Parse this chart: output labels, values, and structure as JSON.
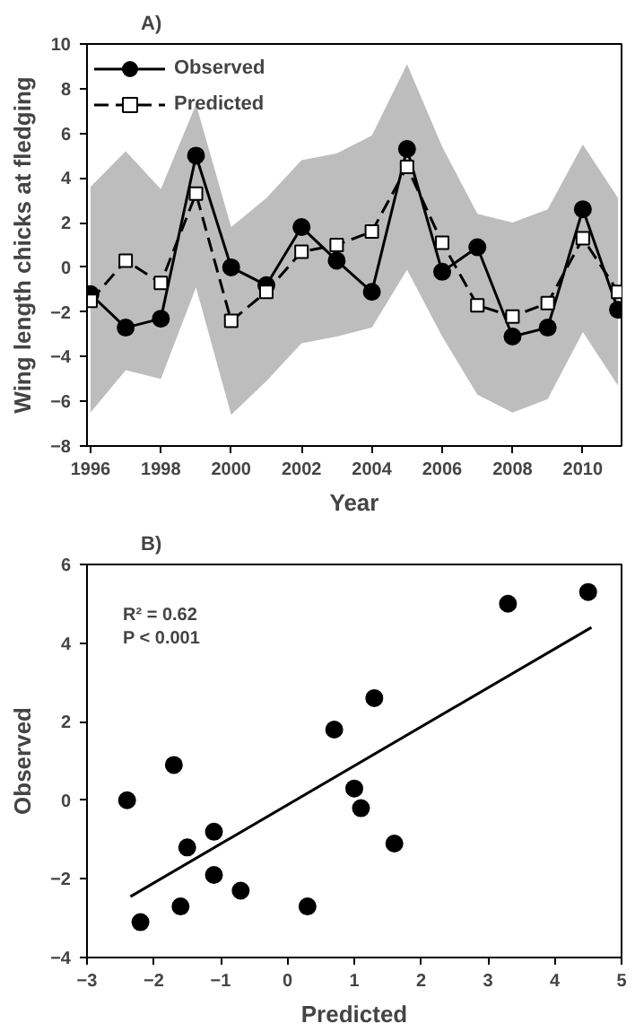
{
  "chart_data": [
    {
      "type": "line",
      "title": "A)",
      "xlabel": "Year",
      "ylabel": "Wing length chicks at fledging",
      "x": [
        1996,
        1997,
        1998,
        1999,
        2000,
        2001,
        2002,
        2003,
        2004,
        2005,
        2006,
        2007,
        2008,
        2009,
        2010,
        2011
      ],
      "series": [
        {
          "name": "Observed",
          "color": "#000000",
          "marker": "circle",
          "line_style": "solid",
          "values": [
            -1.2,
            -2.7,
            -2.3,
            5.0,
            0.0,
            -0.8,
            1.8,
            0.3,
            -1.1,
            5.3,
            -0.2,
            0.9,
            -3.1,
            -2.7,
            2.6,
            -1.9
          ]
        },
        {
          "name": "Predicted",
          "color": "#000000",
          "marker": "square",
          "line_style": "dashed",
          "values": [
            -1.5,
            0.3,
            -0.7,
            3.3,
            -2.4,
            -1.1,
            0.7,
            1.0,
            1.6,
            4.5,
            1.1,
            -1.7,
            -2.2,
            -1.6,
            1.3,
            -1.1
          ],
          "lower": [
            -6.5,
            -4.6,
            -5.0,
            -0.9,
            -6.6,
            -5.1,
            -3.4,
            -3.1,
            -2.7,
            -0.1,
            -3.1,
            -5.7,
            -6.5,
            -5.9,
            -2.9,
            -5.3
          ],
          "upper": [
            3.6,
            5.2,
            3.5,
            7.3,
            1.8,
            3.1,
            4.8,
            5.1,
            5.9,
            9.1,
            5.4,
            2.4,
            2.0,
            2.6,
            5.5,
            3.1
          ]
        }
      ],
      "xlim": [
        1995.9,
        2011.1
      ],
      "ylim": [
        -8,
        10
      ],
      "xticks": [
        1996,
        1998,
        2000,
        2002,
        2004,
        2006,
        2008,
        2010
      ],
      "yticks": [
        -8,
        -6,
        -4,
        -2,
        0,
        2,
        4,
        6,
        8,
        10
      ],
      "grid": false,
      "legend": "top left"
    },
    {
      "type": "scatter",
      "title": "B)",
      "xlabel": "Predicted",
      "ylabel": "Observed",
      "series": [
        {
          "color": "#000000",
          "marker": "circle",
          "x": [
            -1.5,
            0.3,
            -0.7,
            3.3,
            -2.4,
            -1.1,
            0.7,
            1.0,
            1.6,
            4.5,
            1.1,
            -1.7,
            -2.2,
            -1.6,
            1.3,
            -1.1
          ],
          "values": [
            -1.2,
            -2.7,
            -2.3,
            5.0,
            0.0,
            -0.8,
            1.8,
            0.3,
            -1.1,
            5.3,
            -0.2,
            0.9,
            -3.1,
            -2.7,
            2.6,
            -1.9
          ]
        },
        {
          "type": "line",
          "color": "#000000",
          "marker": "none",
          "line_style": "solid",
          "x": [
            -2.35,
            4.55
          ],
          "values": [
            -2.45,
            4.4
          ]
        }
      ],
      "annotations": [
        "R² = 0.62",
        "P < 0.001"
      ],
      "xlim": [
        -3,
        5
      ],
      "ylim": [
        -4,
        6
      ],
      "xticks": [
        -3,
        -2,
        -1,
        0,
        1,
        2,
        3,
        4,
        5
      ],
      "yticks": [
        -4,
        -2,
        0,
        2,
        4,
        6
      ],
      "grid": false,
      "legend": false
    }
  ]
}
